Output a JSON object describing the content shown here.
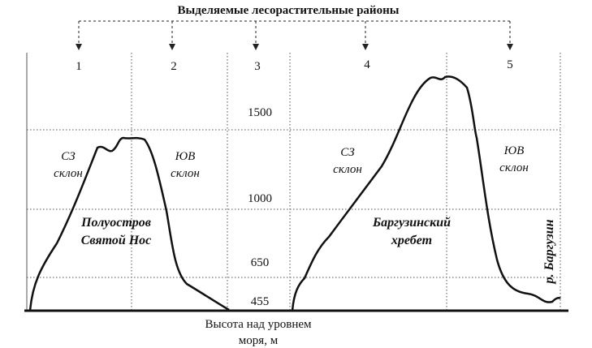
{
  "title": "Выделяемые лесорастительные районы",
  "regions": [
    "1",
    "2",
    "3",
    "4",
    "5"
  ],
  "elevations": [
    "1500",
    "1000",
    "650",
    "455"
  ],
  "axis_label": [
    "Высота над уровнем",
    "моря, м"
  ],
  "left": {
    "slope_nw": [
      "СЗ",
      "склон"
    ],
    "slope_se": [
      "ЮВ",
      "склон"
    ],
    "name": [
      "Полуостров",
      "Святой Нос"
    ]
  },
  "right": {
    "slope_nw": [
      "СЗ",
      "склон"
    ],
    "slope_se": [
      "ЮВ",
      "склон"
    ],
    "name": [
      "Баргузинский",
      "хребет"
    ]
  },
  "river": "р. Баргузин"
}
